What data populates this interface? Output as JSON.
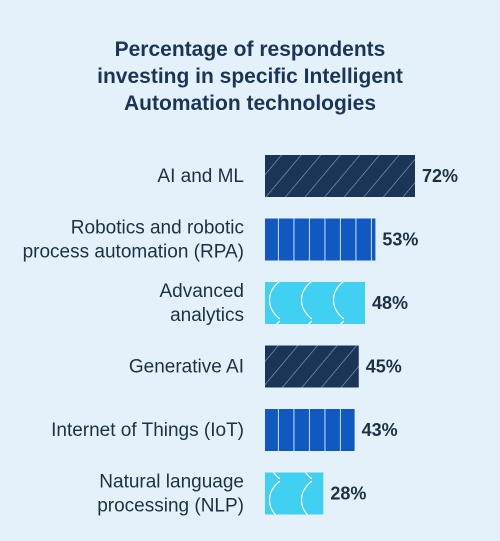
{
  "chart_data": {
    "type": "bar",
    "orientation": "horizontal",
    "title_lines": [
      "Percentage of respondents",
      "investing in specific Intelligent",
      "Automation technologies"
    ],
    "categories": [
      [
        "AI and ML"
      ],
      [
        "Robotics and robotic",
        "process automation (RPA)"
      ],
      [
        "Advanced",
        "analytics"
      ],
      [
        "Generative AI"
      ],
      [
        "Internet of Things (IoT)"
      ],
      [
        "Natural language",
        "processing (NLP)"
      ]
    ],
    "values": [
      72,
      53,
      48,
      45,
      43,
      28
    ],
    "value_labels": [
      "72%",
      "53%",
      "48%",
      "45%",
      "43%",
      "28%"
    ],
    "bar_styles": [
      "hatch",
      "grid",
      "wave",
      "hatch",
      "grid",
      "wave"
    ],
    "colors": {
      "background": "#e4f1fb",
      "title": "#1b3558",
      "text": "#1d3048",
      "hatch": "#1b3558",
      "grid": "#1059c2",
      "wave": "#3fd0f2"
    },
    "xlabel": "",
    "ylabel": "",
    "xlim": [
      0,
      100
    ],
    "grid": false,
    "legend": "none"
  }
}
